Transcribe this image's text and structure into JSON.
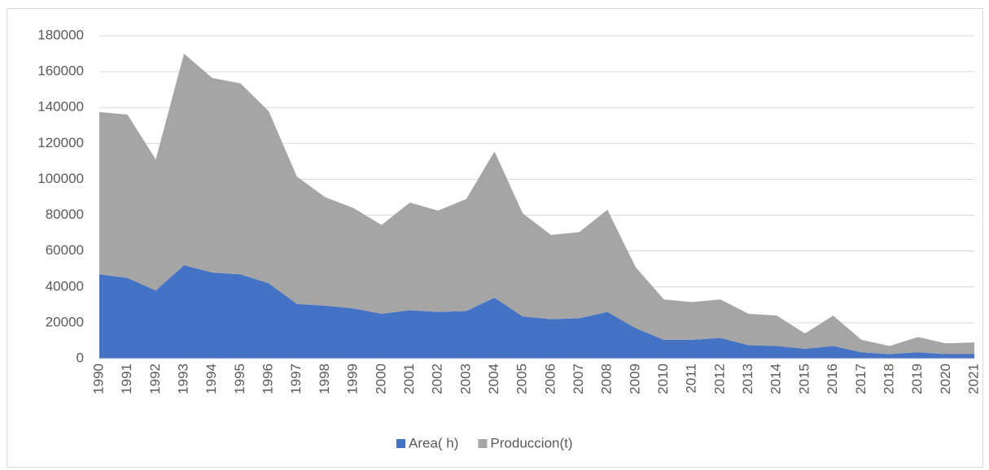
{
  "chart_data": {
    "type": "stacked_area",
    "categories": [
      "1990",
      "1991",
      "1992",
      "1993",
      "1994",
      "1995",
      "1996",
      "1997",
      "1998",
      "1999",
      "2000",
      "2001",
      "2002",
      "2003",
      "2004",
      "2005",
      "2006",
      "2007",
      "2008",
      "2009",
      "2010",
      "2011",
      "2012",
      "2013",
      "2014",
      "2015",
      "2016",
      "2017",
      "2018",
      "2019",
      "2020",
      "2021"
    ],
    "series": [
      {
        "name": "Area( h)",
        "color": "#4472c4",
        "values": [
          47000,
          45000,
          38000,
          52000,
          48000,
          47000,
          42000,
          30500,
          29500,
          28000,
          25000,
          27000,
          26000,
          26500,
          34000,
          23500,
          22000,
          22500,
          26000,
          17000,
          10500,
          10500,
          11500,
          7500,
          7000,
          5500,
          7000,
          3500,
          2500,
          3500,
          2500,
          2500
        ]
      },
      {
        "name": "Produccion(t)",
        "color": "#a5a5a5",
        "values": [
          90500,
          91000,
          73000,
          118000,
          108500,
          106500,
          96000,
          71000,
          60500,
          56000,
          49500,
          60000,
          56500,
          62500,
          81500,
          57500,
          47000,
          48000,
          57000,
          34000,
          22500,
          21000,
          21500,
          17500,
          17000,
          8500,
          17000,
          7000,
          4500,
          8500,
          6000,
          6500
        ]
      }
    ],
    "ylim": [
      0,
      180000
    ],
    "yticks": [
      0,
      20000,
      40000,
      60000,
      80000,
      100000,
      120000,
      140000,
      160000,
      180000
    ],
    "grid": true,
    "legend": "bottom"
  }
}
